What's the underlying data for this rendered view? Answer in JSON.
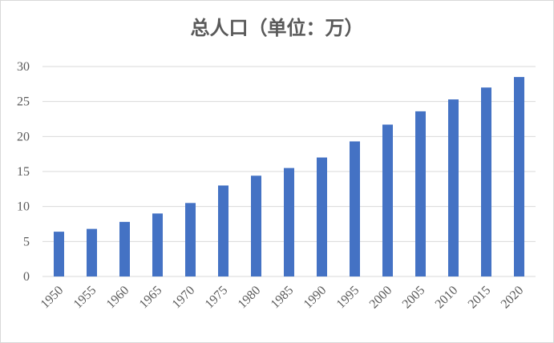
{
  "chart_data": {
    "type": "bar",
    "title": "总人口（单位：万）",
    "xlabel": "",
    "ylabel": "",
    "categories": [
      "1950",
      "1955",
      "1960",
      "1965",
      "1970",
      "1975",
      "1980",
      "1985",
      "1990",
      "1995",
      "2000",
      "2005",
      "2010",
      "2015",
      "2020"
    ],
    "values": [
      6.4,
      6.8,
      7.8,
      9.0,
      10.5,
      13.0,
      14.4,
      15.5,
      17.0,
      19.3,
      21.7,
      23.6,
      25.3,
      27.0,
      28.5
    ],
    "ylim": [
      0,
      30
    ],
    "yticks": [
      0,
      5,
      10,
      15,
      20,
      25,
      30
    ],
    "grid": true,
    "legend": "none",
    "bar_color": "#4472c4",
    "grid_color": "#d9d9d9",
    "text_color": "#595959"
  }
}
